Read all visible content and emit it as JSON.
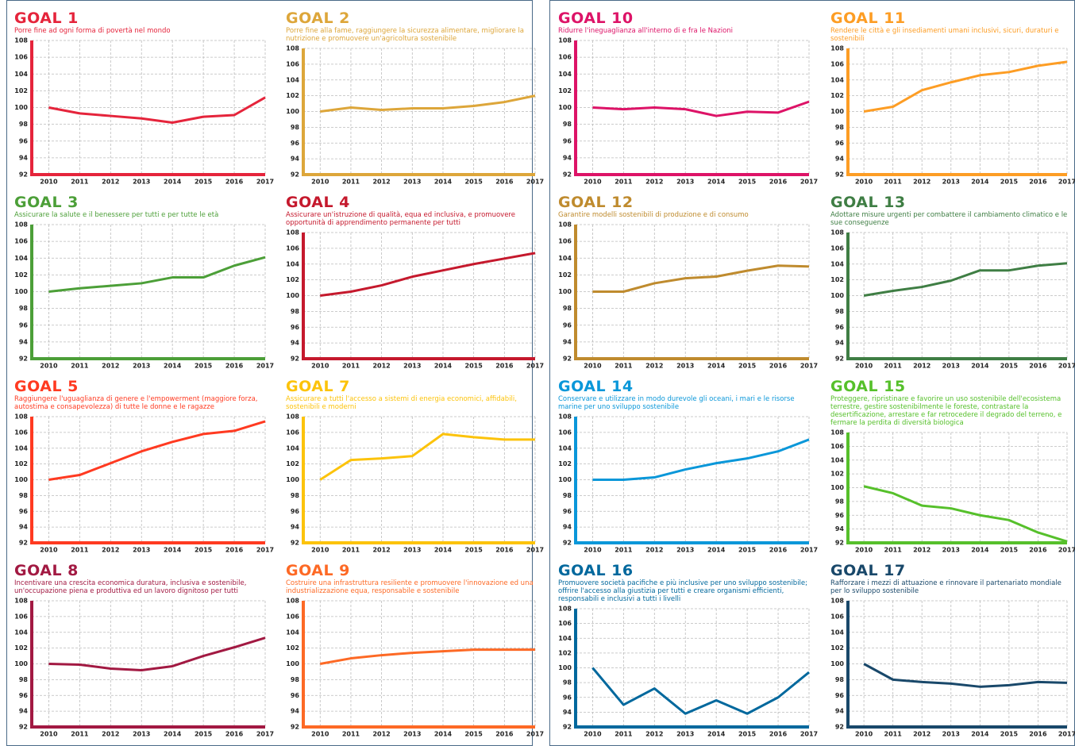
{
  "chart_data": [
    {
      "type": "line",
      "title": "GOAL 1",
      "subtitle": "Porre fine ad ogni forma di povertà nel mondo",
      "color": "#e5243b",
      "categories": [
        "2010",
        "2011",
        "2012",
        "2013",
        "2014",
        "2015",
        "2016",
        "2017"
      ],
      "values": [
        100,
        99.3,
        99,
        98.7,
        98.2,
        98.9,
        99.1,
        101.2
      ],
      "ylim": [
        92,
        108
      ],
      "yticks": [
        92,
        94,
        96,
        98,
        100,
        102,
        104,
        106,
        108
      ],
      "grid": true
    },
    {
      "type": "line",
      "title": "GOAL 2",
      "subtitle": "Porre fine alla fame, raggiungere la sicurezza alimentare, migliorare la nutrizione e promuovere un'agricoltura sostenibile",
      "color": "#dda63a",
      "categories": [
        "2010",
        "2011",
        "2012",
        "2013",
        "2014",
        "2015",
        "2016",
        "2017"
      ],
      "values": [
        100,
        100.5,
        100.2,
        100.4,
        100.4,
        100.7,
        101.2,
        102
      ],
      "ylim": [
        92,
        108
      ],
      "yticks": [
        92,
        94,
        96,
        98,
        100,
        102,
        104,
        106,
        108
      ],
      "grid": true
    },
    {
      "type": "line",
      "title": "GOAL 3",
      "subtitle": "Assicurare la salute e il benessere per tutti e per tutte le età",
      "color": "#4c9f38",
      "categories": [
        "2010",
        "2011",
        "2012",
        "2013",
        "2014",
        "2015",
        "2016",
        "2017"
      ],
      "values": [
        100,
        100.4,
        100.7,
        101,
        101.7,
        101.7,
        103.1,
        104.1
      ],
      "ylim": [
        92,
        108
      ],
      "yticks": [
        92,
        94,
        96,
        98,
        100,
        102,
        104,
        106,
        108
      ],
      "grid": true
    },
    {
      "type": "line",
      "title": "GOAL 4",
      "subtitle": "Assicurare un'istruzione di qualità, equa ed inclusiva, e promuovere opportunità di apprendimento permanente per tutti",
      "color": "#c5192d",
      "categories": [
        "2010",
        "2011",
        "2012",
        "2013",
        "2014",
        "2015",
        "2016",
        "2017"
      ],
      "values": [
        100,
        100.5,
        101.3,
        102.4,
        103.2,
        104,
        104.7,
        105.4
      ],
      "ylim": [
        92,
        108
      ],
      "yticks": [
        92,
        94,
        96,
        98,
        100,
        102,
        104,
        106,
        108
      ],
      "grid": true
    },
    {
      "type": "line",
      "title": "GOAL 5",
      "subtitle": "Raggiungere l'uguaglianza di genere e l'empowerment (maggiore forza, autostima e consapevolezza) di tutte le donne e le ragazze",
      "color": "#ff3a21",
      "categories": [
        "2010",
        "2011",
        "2012",
        "2013",
        "2014",
        "2015",
        "2016",
        "2017"
      ],
      "values": [
        100,
        100.6,
        102.1,
        103.6,
        104.8,
        105.8,
        106.2,
        107.4
      ],
      "ylim": [
        92,
        108
      ],
      "yticks": [
        92,
        94,
        96,
        98,
        100,
        102,
        104,
        106,
        108
      ],
      "grid": true
    },
    {
      "type": "line",
      "title": "GOAL 7",
      "subtitle": "Assicurare a tutti l'accesso a sistemi di energia economici, affidabili, sostenibili e moderni",
      "color": "#fcc30b",
      "categories": [
        "2010",
        "2011",
        "2012",
        "2013",
        "2014",
        "2015",
        "2016",
        "2017"
      ],
      "values": [
        100,
        102.5,
        102.7,
        103,
        105.8,
        105.4,
        105.1,
        105.1
      ],
      "ylim": [
        92,
        108
      ],
      "yticks": [
        92,
        94,
        96,
        98,
        100,
        102,
        104,
        106,
        108
      ],
      "grid": true
    },
    {
      "type": "line",
      "title": "GOAL 8",
      "subtitle": "Incentivare una crescita economica duratura, inclusiva e sostenibile, un'occupazione piena e produttiva ed un lavoro dignitoso per tutti",
      "color": "#a21942",
      "categories": [
        "2010",
        "2011",
        "2012",
        "2013",
        "2014",
        "2015",
        "2016",
        "2017"
      ],
      "values": [
        100,
        99.9,
        99.4,
        99.2,
        99.7,
        101,
        102.1,
        103.3
      ],
      "ylim": [
        92,
        108
      ],
      "yticks": [
        92,
        94,
        96,
        98,
        100,
        102,
        104,
        106,
        108
      ],
      "grid": true
    },
    {
      "type": "line",
      "title": "GOAL 9",
      "subtitle": "Costruire una infrastruttura resiliente e promuovere l'innovazione ed una industrializzazione equa, responsabile e sostenibile",
      "color": "#fd6925",
      "categories": [
        "2010",
        "2011",
        "2012",
        "2013",
        "2014",
        "2015",
        "2016",
        "2017"
      ],
      "values": [
        100,
        100.7,
        101.1,
        101.4,
        101.6,
        101.8,
        101.8,
        101.8
      ],
      "ylim": [
        92,
        108
      ],
      "yticks": [
        92,
        94,
        96,
        98,
        100,
        102,
        104,
        106,
        108
      ],
      "grid": true
    },
    {
      "type": "line",
      "title": "GOAL 10",
      "subtitle": "Ridurre l'ineguaglianza all'interno di e fra le Nazioni",
      "color": "#dd1367",
      "categories": [
        "2010",
        "2011",
        "2012",
        "2013",
        "2014",
        "2015",
        "2016",
        "2017"
      ],
      "values": [
        100,
        99.8,
        100,
        99.8,
        99,
        99.5,
        99.4,
        100.7
      ],
      "ylim": [
        92,
        108
      ],
      "yticks": [
        92,
        94,
        96,
        98,
        100,
        102,
        104,
        106,
        108
      ],
      "grid": true
    },
    {
      "type": "line",
      "title": "GOAL 11",
      "subtitle": "Rendere le città e gli insediamenti umani inclusivi, sicuri, duraturi e sostenibili",
      "color": "#fd9d24",
      "categories": [
        "2010",
        "2011",
        "2012",
        "2013",
        "2014",
        "2015",
        "2016",
        "2017"
      ],
      "values": [
        100,
        100.6,
        102.7,
        103.7,
        104.6,
        105,
        105.8,
        106.3
      ],
      "ylim": [
        92,
        108
      ],
      "yticks": [
        92,
        94,
        96,
        98,
        100,
        102,
        104,
        106,
        108
      ],
      "grid": true
    },
    {
      "type": "line",
      "title": "GOAL 12",
      "subtitle": "Garantire modelli sostenibili di produzione e di consumo",
      "color": "#bf8b2e",
      "categories": [
        "2010",
        "2011",
        "2012",
        "2013",
        "2014",
        "2015",
        "2016",
        "2017"
      ],
      "values": [
        100,
        100,
        101,
        101.6,
        101.8,
        102.5,
        103.1,
        103
      ],
      "ylim": [
        92,
        108
      ],
      "yticks": [
        92,
        94,
        96,
        98,
        100,
        102,
        104,
        106,
        108
      ],
      "grid": true
    },
    {
      "type": "line",
      "title": "GOAL 13",
      "subtitle": "Adottare misure urgenti per combattere il cambiamento climatico e le sue conseguenze",
      "color": "#3f7e44",
      "categories": [
        "2010",
        "2011",
        "2012",
        "2013",
        "2014",
        "2015",
        "2016",
        "2017"
      ],
      "values": [
        100,
        100.6,
        101.1,
        101.9,
        103.2,
        103.2,
        103.8,
        104.1
      ],
      "ylim": [
        92,
        108
      ],
      "yticks": [
        92,
        94,
        96,
        98,
        100,
        102,
        104,
        106,
        108
      ],
      "grid": true
    },
    {
      "type": "line",
      "title": "GOAL 14",
      "subtitle": "Conservare e utilizzare in modo durevole gli oceani, i mari e le risorse marine per uno sviluppo sostenibile",
      "color": "#0a97d9",
      "categories": [
        "2010",
        "2011",
        "2012",
        "2013",
        "2014",
        "2015",
        "2016",
        "2017"
      ],
      "values": [
        100,
        100,
        100.3,
        101.3,
        102.1,
        102.7,
        103.6,
        105.1
      ],
      "ylim": [
        92,
        108
      ],
      "yticks": [
        92,
        94,
        96,
        98,
        100,
        102,
        104,
        106,
        108
      ],
      "grid": true
    },
    {
      "type": "line",
      "title": "GOAL 15",
      "subtitle": "Proteggere, ripristinare e favorire un uso sostenibile dell'ecosistema terrestre, gestire sostenibilmente le foreste, contrastare la desertificazione, arrestare e far retrocedere il degrado del terreno, e fermare la perdita di diversità biologica",
      "color": "#56c02b",
      "categories": [
        "2010",
        "2011",
        "2012",
        "2013",
        "2014",
        "2015",
        "2016",
        "2017"
      ],
      "values": [
        100.2,
        99.2,
        97.4,
        97,
        96,
        95.3,
        93.5,
        92.2
      ],
      "ylim": [
        92,
        108
      ],
      "yticks": [
        92,
        94,
        96,
        98,
        100,
        102,
        104,
        106,
        108
      ],
      "grid": true
    },
    {
      "type": "line",
      "title": "GOAL 16",
      "subtitle": "Promuovere società pacifiche e più inclusive per uno sviluppo sostenibile; offrire l'accesso alla giustizia per tutti e creare organismi efficienti, responsabili e inclusivi a tutti i livelli",
      "color": "#00689d",
      "categories": [
        "2010",
        "2011",
        "2012",
        "2013",
        "2014",
        "2015",
        "2016",
        "2017"
      ],
      "values": [
        100,
        95,
        97.2,
        93.8,
        95.6,
        93.8,
        96,
        99.4
      ],
      "ylim": [
        92,
        108
      ],
      "yticks": [
        92,
        94,
        96,
        98,
        100,
        102,
        104,
        106,
        108
      ],
      "grid": true
    },
    {
      "type": "line",
      "title": "GOAL 17",
      "subtitle": "Rafforzare i mezzi di attuazione e rinnovare il partenariato mondiale per lo sviluppo sostenibile",
      "color": "#19486a",
      "categories": [
        "2010",
        "2011",
        "2012",
        "2013",
        "2014",
        "2015",
        "2016",
        "2017"
      ],
      "values": [
        100,
        98,
        97.7,
        97.5,
        97.1,
        97.3,
        97.7,
        97.6
      ],
      "ylim": [
        92,
        108
      ],
      "yticks": [
        92,
        94,
        96,
        98,
        100,
        102,
        104,
        106,
        108
      ],
      "grid": true
    }
  ]
}
